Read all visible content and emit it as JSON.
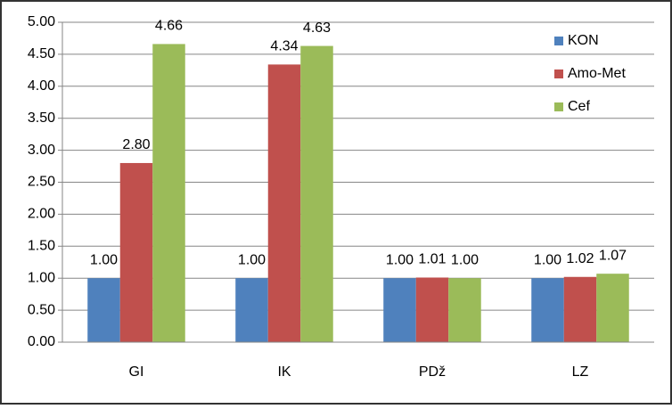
{
  "chart_data": {
    "type": "bar",
    "categories": [
      "GI",
      "IK",
      "PDž",
      "LZ"
    ],
    "series": [
      {
        "name": "KON",
        "color": "#4f81bd",
        "values": [
          1,
          1,
          1,
          1
        ],
        "value_labels": [
          "1.00",
          "1.00",
          "1.00",
          "1.00"
        ]
      },
      {
        "name": "Amo-Met",
        "color": "#c0504d",
        "values": [
          2.8,
          4.34,
          1.01,
          1.02
        ],
        "value_labels": [
          "2.80",
          "4.34",
          "1.01",
          "1.02"
        ]
      },
      {
        "name": "Cef",
        "color": "#9bbb59",
        "values": [
          4.66,
          4.63,
          1,
          1.07
        ],
        "value_labels": [
          "4.66",
          "4.63",
          "1.00",
          "1.07"
        ]
      }
    ],
    "ylim": [
      0,
      5
    ],
    "yticks": [
      {
        "value": 0,
        "label": "0.00"
      },
      {
        "value": 0.5,
        "label": "0.50"
      },
      {
        "value": 1,
        "label": "1.00"
      },
      {
        "value": 1.5,
        "label": "1.50"
      },
      {
        "value": 2,
        "label": "2.00"
      },
      {
        "value": 2.5,
        "label": "2.50"
      },
      {
        "value": 3,
        "label": "3.00"
      },
      {
        "value": 3.5,
        "label": "3.50"
      },
      {
        "value": 4,
        "label": "4.00"
      },
      {
        "value": 4.5,
        "label": "4.50"
      },
      {
        "value": 5,
        "label": "5.00"
      }
    ],
    "grid": true,
    "legend": "right"
  }
}
